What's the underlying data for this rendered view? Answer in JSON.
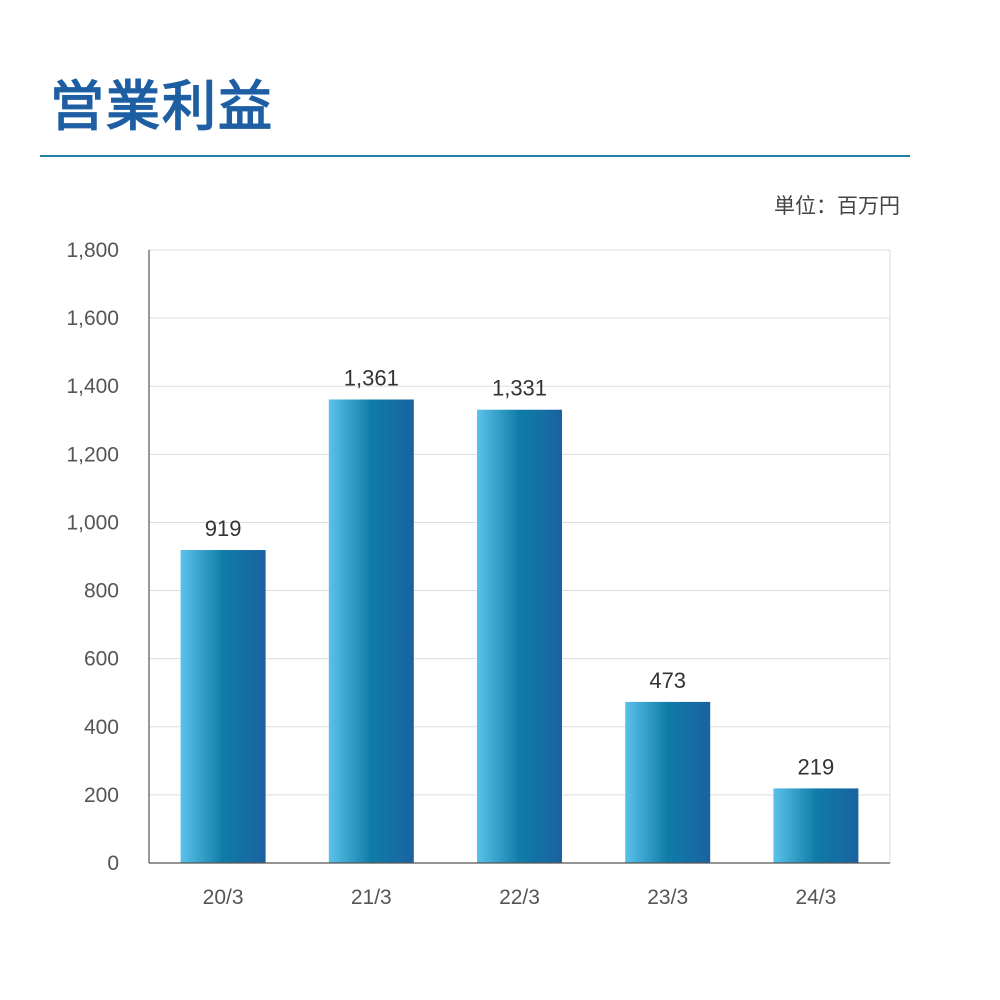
{
  "title": "営業利益",
  "unit_label": "単位：百万円",
  "colors": {
    "title": "#1e5fa3",
    "rule": "#1f7fa8",
    "bar_light": "#5bc2ea",
    "bar_mid": "#0f7ca8",
    "bar_dark": "#1a62a0"
  },
  "chart_data": {
    "type": "bar",
    "title": "営業利益",
    "xlabel": "",
    "ylabel": "",
    "unit": "単位：百万円",
    "categories": [
      "20/3",
      "21/3",
      "22/3",
      "23/3",
      "24/3"
    ],
    "values": [
      919,
      1361,
      1331,
      473,
      219
    ],
    "value_labels": [
      "919",
      "1,361",
      "1,331",
      "473",
      "219"
    ],
    "ylim": [
      0,
      1800
    ],
    "yticks": [
      0,
      200,
      400,
      600,
      800,
      1000,
      1200,
      1400,
      1600,
      1800
    ],
    "ytick_labels": [
      "0",
      "200",
      "400",
      "600",
      "800",
      "1,000",
      "1,200",
      "1,400",
      "1,600",
      "1,800"
    ],
    "grid": true,
    "legend": "none"
  }
}
